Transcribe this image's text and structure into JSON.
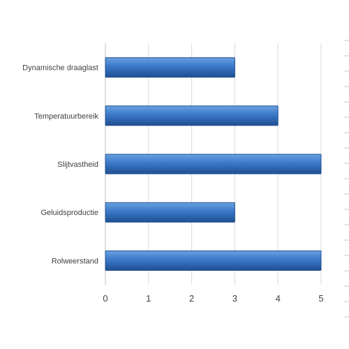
{
  "chart_data": {
    "type": "bar",
    "orientation": "horizontal",
    "categories": [
      "Dynamische draaglast",
      "Temperatuurbereik",
      "Slijtvastheid",
      "Geluidsproductie",
      "Rolweerstand"
    ],
    "values": [
      3,
      4,
      5,
      3,
      5
    ],
    "xlim": [
      0,
      5
    ],
    "xticks": [
      "0",
      "1",
      "2",
      "3",
      "4",
      "5"
    ],
    "grid": "vertical",
    "legend": "none",
    "bar_color": "#3a78c8",
    "bar_color_light": "#6aa2e0",
    "bar_color_dark": "#1f4f90",
    "grid_color": "#d9d9d9",
    "axis_color": "#bfbfbf"
  }
}
